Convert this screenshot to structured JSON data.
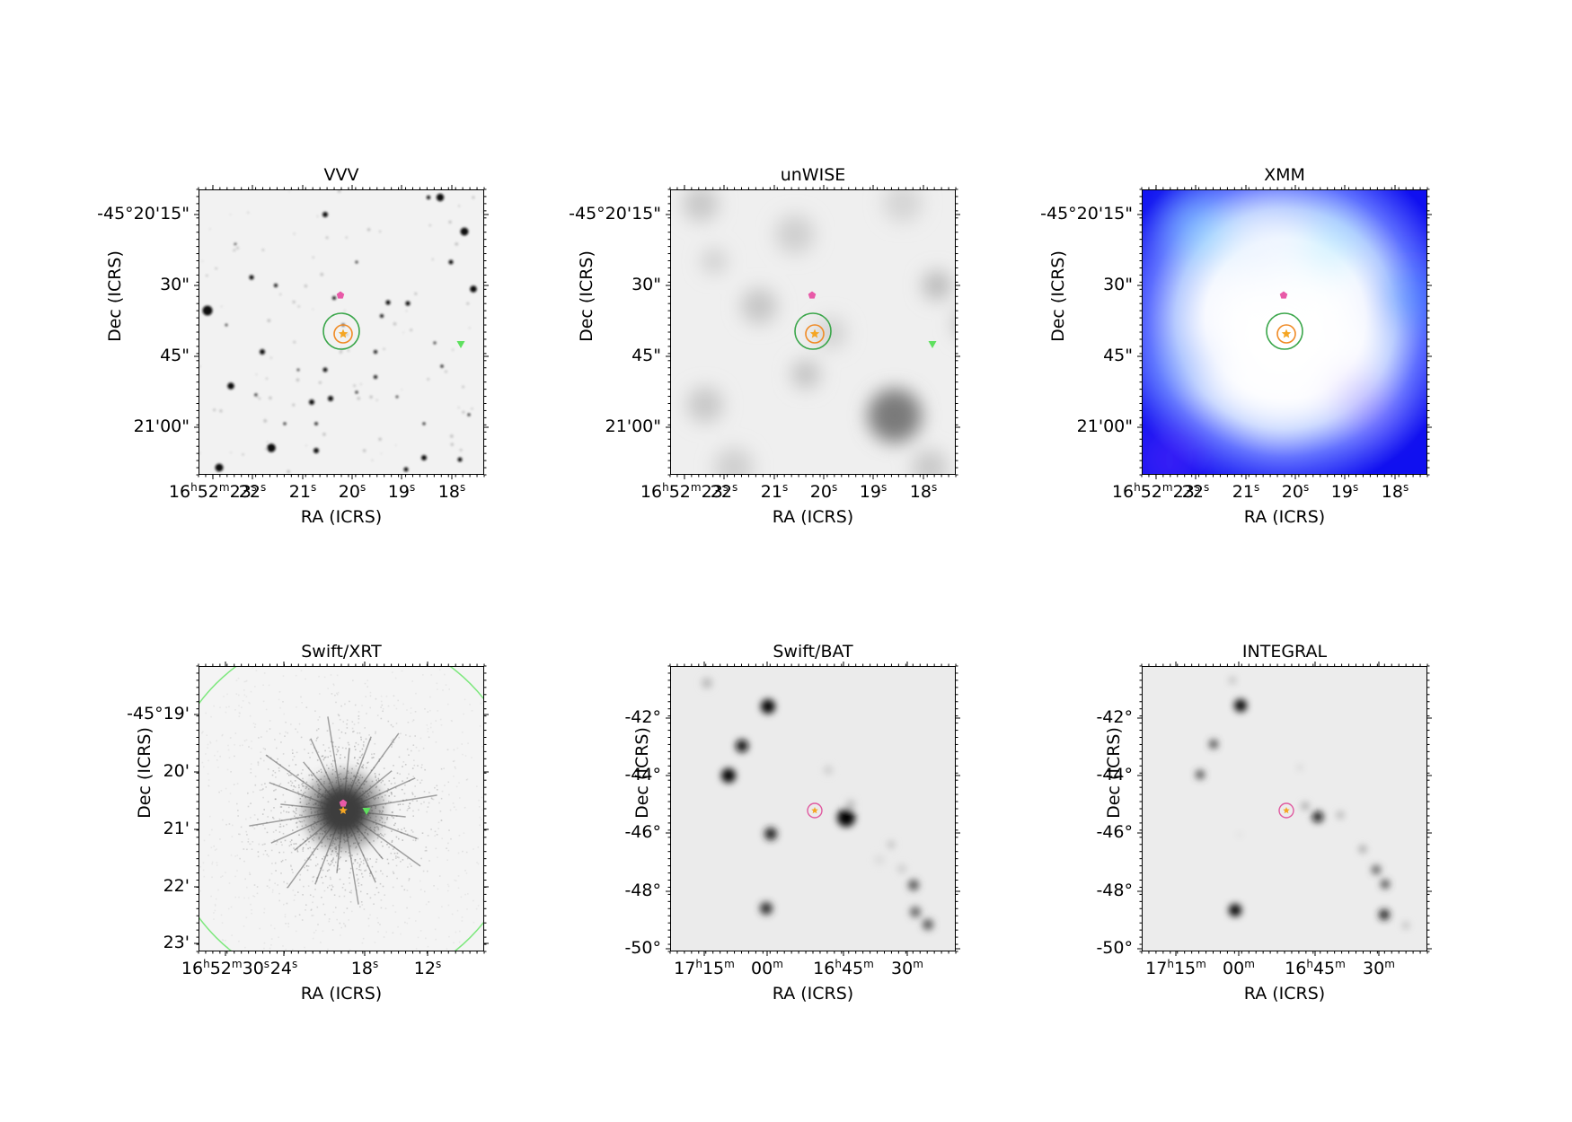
{
  "panels": [
    {
      "id": "vvv",
      "title": "VVV",
      "xlabel": "RA (ICRS)",
      "ylabel": "Dec (ICRS)",
      "background": "#f2f2f2",
      "xticks": [
        {
          "h": "16",
          "hs": "h",
          "m": "52",
          "ms": "m",
          "s": "23",
          "ss": "s"
        },
        {
          "s": "22",
          "ss": "s"
        },
        {
          "s": "21",
          "ss": "s"
        },
        {
          "s": "20",
          "ss": "s"
        },
        {
          "s": "19",
          "ss": "s"
        },
        {
          "s": "18",
          "ss": "s"
        }
      ],
      "yticks": [
        "-45°20'15\"",
        "30\"",
        "45\"",
        "21'00\""
      ]
    },
    {
      "id": "unwise",
      "title": "unWISE",
      "xlabel": "RA (ICRS)",
      "ylabel": "Dec (ICRS)",
      "background": "#efefef",
      "xticks": [
        {
          "h": "16",
          "hs": "h",
          "m": "52",
          "ms": "m",
          "s": "23",
          "ss": "s"
        },
        {
          "s": "22",
          "ss": "s"
        },
        {
          "s": "21",
          "ss": "s"
        },
        {
          "s": "20",
          "ss": "s"
        },
        {
          "s": "19",
          "ss": "s"
        },
        {
          "s": "18",
          "ss": "s"
        }
      ],
      "yticks": [
        "-45°20'15\"",
        "30\"",
        "45\"",
        "21'00\""
      ]
    },
    {
      "id": "xmm",
      "title": "XMM",
      "xlabel": "RA (ICRS)",
      "ylabel": "Dec (ICRS)",
      "background": "#1a1aff",
      "xticks": [
        {
          "h": "16",
          "hs": "h",
          "m": "52",
          "ms": "m",
          "s": "23",
          "ss": "s"
        },
        {
          "s": "22",
          "ss": "s"
        },
        {
          "s": "21",
          "ss": "s"
        },
        {
          "s": "20",
          "ss": "s"
        },
        {
          "s": "19",
          "ss": "s"
        },
        {
          "s": "18",
          "ss": "s"
        }
      ],
      "yticks": [
        "-45°20'15\"",
        "30\"",
        "45\"",
        "21'00\""
      ]
    },
    {
      "id": "swift_xrt",
      "title": "Swift/XRT",
      "xlabel": "RA (ICRS)",
      "ylabel": "Dec (ICRS)",
      "background": "#f4f4f4",
      "xticks": [
        {
          "h": "16",
          "hs": "h",
          "m": "52",
          "ms": "m",
          "s": "30",
          "ss": "s"
        },
        {
          "s": "24",
          "ss": "s"
        },
        {
          "s": "18",
          "ss": "s"
        },
        {
          "s": "12",
          "ss": "s"
        }
      ],
      "yticks": [
        "-45°19'",
        "20'",
        "21'",
        "22'",
        "23'"
      ]
    },
    {
      "id": "swift_bat",
      "title": "Swift/BAT",
      "xlabel": "RA (ICRS)",
      "ylabel": "Dec (ICRS)",
      "background": "#ebebeb",
      "xticks": [
        {
          "h": "17",
          "hs": "h",
          "m": "15",
          "ms": "m"
        },
        {
          "m": "00",
          "ms": "m"
        },
        {
          "h": "16",
          "hs": "h",
          "m": "45",
          "ms": "m"
        },
        {
          "m": "30",
          "ms": "m"
        }
      ],
      "yticks": [
        "-42°",
        "-44°",
        "-46°",
        "-48°",
        "-50°"
      ]
    },
    {
      "id": "integral",
      "title": "INTEGRAL",
      "xlabel": "RA (ICRS)",
      "ylabel": "Dec (ICRS)",
      "background": "#ececec",
      "xticks": [
        {
          "h": "17",
          "hs": "h",
          "m": "15",
          "ms": "m"
        },
        {
          "m": "00",
          "ms": "m"
        },
        {
          "h": "16",
          "hs": "h",
          "m": "45",
          "ms": "m"
        },
        {
          "m": "30",
          "ms": "m"
        }
      ],
      "yticks": [
        "-42°",
        "-44°",
        "-46°",
        "-48°",
        "-50°"
      ]
    }
  ],
  "marker_colors": {
    "source_star": "#f5a623",
    "orange_circle": "#f08a24",
    "green_circle": "#3aa64a",
    "pink_pentagon": "#e85aa8",
    "green_triangle": "#5ee05e",
    "pink_circle": "#e05aa0",
    "xrt_error_circle": "#7ee87e"
  },
  "marker_icons": [
    "star-icon",
    "pentagon-icon",
    "triangle-icon",
    "circle-icon"
  ]
}
